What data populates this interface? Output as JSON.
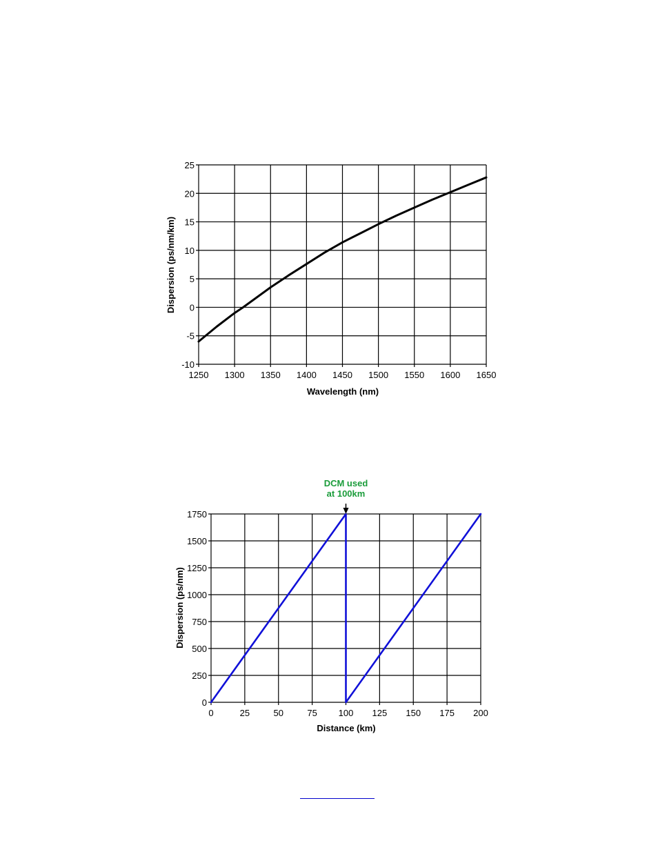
{
  "chart_data": [
    {
      "type": "line",
      "title": "",
      "xlabel": "Wavelength (nm)",
      "ylabel": "Dispersion (ps/nm/km)",
      "xlim": [
        1250,
        1650
      ],
      "ylim": [
        -10,
        25
      ],
      "xticks": [
        1250,
        1300,
        1350,
        1400,
        1450,
        1500,
        1550,
        1600,
        1650
      ],
      "yticks": [
        -10,
        -5,
        0,
        5,
        10,
        15,
        20,
        25
      ],
      "grid": true,
      "series": [
        {
          "color": "#000000",
          "x": [
            1250,
            1275,
            1300,
            1312,
            1325,
            1350,
            1375,
            1400,
            1425,
            1450,
            1475,
            1500,
            1525,
            1550,
            1575,
            1600,
            1625,
            1650
          ],
          "y": [
            -6.0,
            -3.4,
            -1.0,
            0.0,
            1.2,
            3.5,
            5.6,
            7.6,
            9.6,
            11.4,
            13.0,
            14.6,
            16.1,
            17.5,
            18.9,
            20.2,
            21.5,
            22.8
          ]
        }
      ]
    },
    {
      "type": "line",
      "title": "",
      "xlabel": "Distance (km)",
      "ylabel": "Dispersion (ps/nm)",
      "xlim": [
        0,
        200
      ],
      "ylim": [
        0,
        1750
      ],
      "xticks": [
        0,
        25,
        50,
        75,
        100,
        125,
        150,
        175,
        200
      ],
      "yticks": [
        0,
        250,
        500,
        750,
        1000,
        1250,
        1500,
        1750
      ],
      "grid": true,
      "annotation": {
        "text_lines": [
          "DCM used",
          "at 100km"
        ],
        "x": 100,
        "color": "#1a9c3a"
      },
      "series": [
        {
          "color": "#1010d8",
          "x": [
            0,
            100,
            100,
            200
          ],
          "y": [
            0,
            1750,
            0,
            1750
          ]
        }
      ]
    }
  ],
  "footer": {
    "link_visible": true
  }
}
